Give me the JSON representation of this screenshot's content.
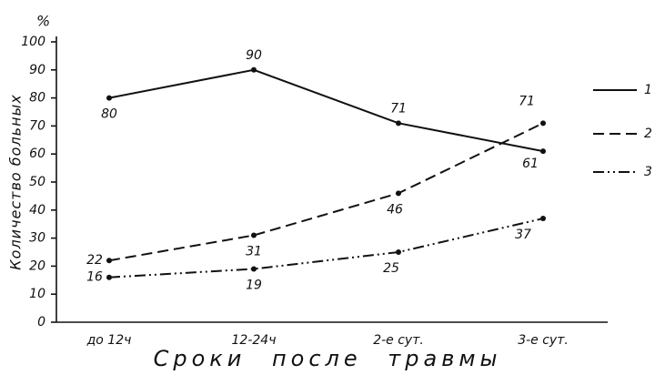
{
  "chart_data": {
    "type": "line",
    "y_unit": "%",
    "ylabel": "Количество больных",
    "xlabel": "Сроки после травмы",
    "categories": [
      "до 12ч",
      "12-24ч",
      "2-е сут.",
      "3-е сут."
    ],
    "series": [
      {
        "name": "1",
        "color": "#111111",
        "style": "solid",
        "values": [
          80,
          90,
          71,
          61
        ]
      },
      {
        "name": "2",
        "color": "#111111",
        "style": "dashed",
        "values": [
          22,
          31,
          46,
          71
        ]
      },
      {
        "name": "3",
        "color": "#111111",
        "style": "dashdotdot",
        "values": [
          16,
          19,
          25,
          37
        ]
      }
    ],
    "ylim": [
      0,
      100
    ],
    "yticks": [
      0,
      10,
      20,
      30,
      40,
      50,
      60,
      70,
      80,
      90,
      100
    ],
    "grid": false,
    "legend": "right"
  }
}
